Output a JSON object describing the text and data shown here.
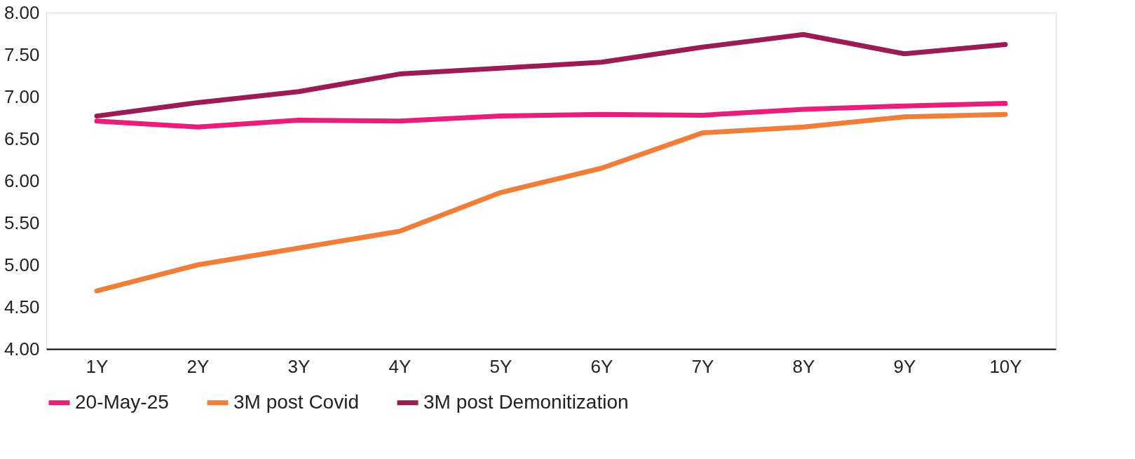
{
  "chart_data": {
    "type": "line",
    "categories": [
      "1Y",
      "2Y",
      "3Y",
      "4Y",
      "5Y",
      "6Y",
      "7Y",
      "8Y",
      "9Y",
      "10Y"
    ],
    "ylim": [
      4.0,
      8.0
    ],
    "yticks": [
      {
        "value": 4,
        "label": "4.00"
      },
      {
        "value": 4.5,
        "label": "4.50"
      },
      {
        "value": 5,
        "label": "5.00"
      },
      {
        "value": 5.5,
        "label": "5.50"
      },
      {
        "value": 6,
        "label": "6.00"
      },
      {
        "value": 6.5,
        "label": "6.50"
      },
      {
        "value": 7,
        "label": "7.00"
      },
      {
        "value": 7.5,
        "label": "7.50"
      },
      {
        "value": 8,
        "label": "8.00"
      }
    ],
    "grid": false,
    "legend": "bottom",
    "marker": "none",
    "line_style": "solid",
    "series": [
      {
        "name": "20-May-25",
        "color": "#e91e7a",
        "values": [
          6.71,
          6.64,
          6.72,
          6.71,
          6.77,
          6.79,
          6.78,
          6.85,
          6.89,
          6.92
        ]
      },
      {
        "name": "3M post Covid",
        "color": "#f07d38",
        "values": [
          4.69,
          5.0,
          5.2,
          5.4,
          5.86,
          6.15,
          6.57,
          6.64,
          6.76,
          6.79
        ]
      },
      {
        "name": "3M post Demonitization",
        "color": "#9b1b55",
        "values": [
          6.77,
          6.93,
          7.06,
          7.27,
          7.34,
          7.41,
          7.59,
          7.74,
          7.51,
          7.62
        ]
      }
    ]
  }
}
